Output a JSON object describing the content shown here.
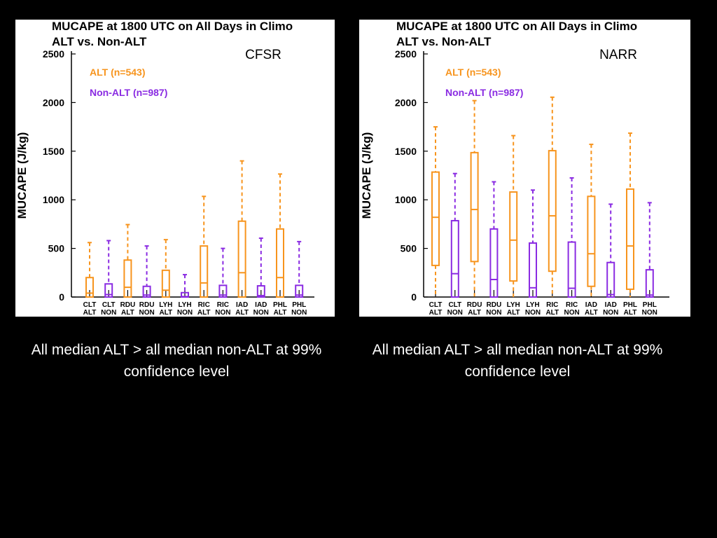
{
  "slide": {
    "captions": [
      "All median ALT > all median non-ALT at 99% confidence level",
      "All median ALT > all median non-ALT at 99% confidence level"
    ]
  },
  "colors": {
    "alt": "#f7941d",
    "non_alt": "#8a2be2",
    "axis": "#000000",
    "background": "#000000"
  },
  "chart_data": [
    {
      "type": "box",
      "title": "MUCAPE at 1800 UTC on All Days in Climo",
      "subtitle": "ALT vs. Non-ALT",
      "dataset_label": "CFSR",
      "ylabel": "MUCAPE (J/kg)",
      "ylim": [
        0,
        2500
      ],
      "yticks": [
        0,
        500,
        1000,
        1500,
        2000,
        2500
      ],
      "grid": false,
      "legend": [
        {
          "label": "ALT (n=543)",
          "group": "alt"
        },
        {
          "label": "Non-ALT (n=987)",
          "group": "non_alt"
        }
      ],
      "categories": [
        {
          "line1": "CLT",
          "line2": "ALT",
          "group": "alt",
          "min": 0,
          "q1": 0,
          "median": 40,
          "q3": 200,
          "max": 560
        },
        {
          "line1": "CLT",
          "line2": "NON",
          "group": "non_alt",
          "min": 0,
          "q1": 0,
          "median": 25,
          "q3": 135,
          "max": 580
        },
        {
          "line1": "RDU",
          "line2": "ALT",
          "group": "alt",
          "min": 0,
          "q1": 0,
          "median": 100,
          "q3": 380,
          "max": 745
        },
        {
          "line1": "RDU",
          "line2": "NON",
          "group": "non_alt",
          "min": 0,
          "q1": 0,
          "median": 20,
          "q3": 110,
          "max": 525
        },
        {
          "line1": "LYH",
          "line2": "ALT",
          "group": "alt",
          "min": 0,
          "q1": 0,
          "median": 70,
          "q3": 275,
          "max": 590
        },
        {
          "line1": "LYH",
          "line2": "NON",
          "group": "non_alt",
          "min": 0,
          "q1": 0,
          "median": 5,
          "q3": 45,
          "max": 230
        },
        {
          "line1": "RIC",
          "line2": "ALT",
          "group": "alt",
          "min": 0,
          "q1": 0,
          "median": 145,
          "q3": 525,
          "max": 1035
        },
        {
          "line1": "RIC",
          "line2": "NON",
          "group": "non_alt",
          "min": 0,
          "q1": 0,
          "median": 20,
          "q3": 120,
          "max": 500
        },
        {
          "line1": "IAD",
          "line2": "ALT",
          "group": "alt",
          "min": 0,
          "q1": 0,
          "median": 250,
          "q3": 780,
          "max": 1400
        },
        {
          "line1": "IAD",
          "line2": "NON",
          "group": "non_alt",
          "min": 0,
          "q1": 0,
          "median": 15,
          "q3": 115,
          "max": 605
        },
        {
          "line1": "PHL",
          "line2": "ALT",
          "group": "alt",
          "min": 0,
          "q1": 0,
          "median": 200,
          "q3": 700,
          "max": 1265
        },
        {
          "line1": "PHL",
          "line2": "NON",
          "group": "non_alt",
          "min": 0,
          "q1": 0,
          "median": 20,
          "q3": 120,
          "max": 570
        }
      ]
    },
    {
      "type": "box",
      "title": "MUCAPE at 1800 UTC on All Days in Climo",
      "subtitle": "ALT vs. Non-ALT",
      "dataset_label": "NARR",
      "ylabel": "MUCAPE (J/kg)",
      "ylim": [
        0,
        2500
      ],
      "yticks": [
        0,
        500,
        1000,
        1500,
        2000,
        2500
      ],
      "grid": false,
      "legend": [
        {
          "label": "ALT (n=543)",
          "group": "alt"
        },
        {
          "label": "Non-ALT (n=987)",
          "group": "non_alt"
        }
      ],
      "categories": [
        {
          "line1": "CLT",
          "line2": "ALT",
          "group": "alt",
          "min": 0,
          "q1": 325,
          "median": 820,
          "q3": 1285,
          "max": 1750
        },
        {
          "line1": "CLT",
          "line2": "NON",
          "group": "non_alt",
          "min": 0,
          "q1": 0,
          "median": 240,
          "q3": 785,
          "max": 1270
        },
        {
          "line1": "RDU",
          "line2": "ALT",
          "group": "alt",
          "min": 0,
          "q1": 365,
          "median": 900,
          "q3": 1485,
          "max": 2020
        },
        {
          "line1": "RDU",
          "line2": "NON",
          "group": "non_alt",
          "min": 0,
          "q1": 0,
          "median": 180,
          "q3": 700,
          "max": 1185
        },
        {
          "line1": "LYH",
          "line2": "ALT",
          "group": "alt",
          "min": 0,
          "q1": 165,
          "median": 585,
          "q3": 1080,
          "max": 1660
        },
        {
          "line1": "LYH",
          "line2": "NON",
          "group": "non_alt",
          "min": 0,
          "q1": 0,
          "median": 95,
          "q3": 555,
          "max": 1100
        },
        {
          "line1": "RIC",
          "line2": "ALT",
          "group": "alt",
          "min": 0,
          "q1": 265,
          "median": 835,
          "q3": 1505,
          "max": 2055
        },
        {
          "line1": "RIC",
          "line2": "NON",
          "group": "non_alt",
          "min": 0,
          "q1": 0,
          "median": 90,
          "q3": 565,
          "max": 1225
        },
        {
          "line1": "IAD",
          "line2": "ALT",
          "group": "alt",
          "min": 0,
          "q1": 110,
          "median": 445,
          "q3": 1035,
          "max": 1570
        },
        {
          "line1": "IAD",
          "line2": "NON",
          "group": "non_alt",
          "min": 0,
          "q1": 0,
          "median": 25,
          "q3": 355,
          "max": 955
        },
        {
          "line1": "PHL",
          "line2": "ALT",
          "group": "alt",
          "min": 0,
          "q1": 80,
          "median": 525,
          "q3": 1110,
          "max": 1685
        },
        {
          "line1": "PHL",
          "line2": "NON",
          "group": "non_alt",
          "min": 0,
          "q1": 0,
          "median": 20,
          "q3": 280,
          "max": 970
        }
      ]
    }
  ]
}
